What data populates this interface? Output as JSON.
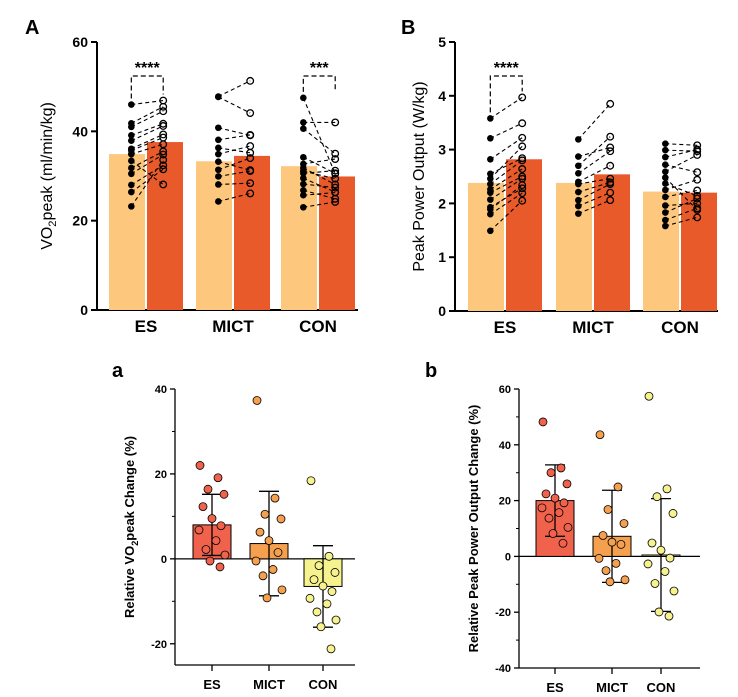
{
  "colors": {
    "pre": "#FDC77E",
    "post": "#E95A2B",
    "es": "#F0624C",
    "mict": "#F4A04E",
    "con": "#F6F38E"
  },
  "chart_data": [
    {
      "panel": "A",
      "type": "bar",
      "categories": [
        "ES",
        "MICT",
        "CON"
      ],
      "ylabel_main": "VO",
      "ylabel_sub": "2",
      "ylabel_rest": "peak (ml/min/kg)",
      "ylim": [
        0,
        60
      ],
      "yticks": [
        "0",
        "20",
        "40",
        "60"
      ],
      "series": [
        {
          "values": [
            34.9,
            33.3,
            32.2
          ]
        },
        {
          "values": [
            37.6,
            34.5,
            29.9
          ]
        }
      ],
      "pairs": [
        [
          [
            23.2,
            33.6
          ],
          [
            26.4,
            31.5
          ],
          [
            28.0,
            32.4
          ],
          [
            30.5,
            34.8
          ],
          [
            31.8,
            35.5
          ],
          [
            33.4,
            28.1
          ],
          [
            34.9,
            37.1
          ],
          [
            35.7,
            38.6
          ],
          [
            36.1,
            39.3
          ],
          [
            37.9,
            41.2
          ],
          [
            39.1,
            41.7
          ],
          [
            41.0,
            44.5
          ],
          [
            41.8,
            45.5
          ],
          [
            46.0,
            46.9
          ]
        ],
        [
          [
            24.3,
            26.1
          ],
          [
            28.1,
            28.4
          ],
          [
            29.9,
            31.1
          ],
          [
            31.4,
            34.0
          ],
          [
            33.2,
            31.3
          ],
          [
            34.9,
            36.7
          ],
          [
            36.3,
            35.2
          ],
          [
            38.1,
            39.2
          ],
          [
            40.8,
            39.1
          ],
          [
            47.7,
            44.1
          ],
          [
            47.8,
            51.3
          ]
        ],
        [
          [
            23.0,
            24.2
          ],
          [
            25.7,
            26.3
          ],
          [
            26.8,
            24.9
          ],
          [
            28.2,
            27.4
          ],
          [
            29.5,
            26.4
          ],
          [
            30.6,
            31.2
          ],
          [
            31.1,
            29.4
          ],
          [
            31.8,
            28.1
          ],
          [
            32.7,
            33.8
          ],
          [
            34.2,
            30.6
          ],
          [
            40.6,
            35.0
          ],
          [
            42.0,
            42.0
          ],
          [
            47.5,
            30.5
          ]
        ]
      ],
      "significance": [
        {
          "category": "ES",
          "label": "****"
        },
        {
          "category": "CON",
          "label": "***"
        }
      ]
    },
    {
      "panel": "B",
      "type": "bar",
      "categories": [
        "ES",
        "MICT",
        "CON"
      ],
      "ylabel": "Peak Power Output (W/kg)",
      "ylim": [
        0,
        5
      ],
      "yticks": [
        "0",
        "1",
        "2",
        "3",
        "4",
        "5"
      ],
      "series": [
        {
          "values": [
            2.38,
            2.38,
            2.22
          ]
        },
        {
          "values": [
            2.82,
            2.54,
            2.2
          ]
        }
      ],
      "pairs": [
        [
          [
            1.49,
            2.05
          ],
          [
            1.8,
            2.19
          ],
          [
            1.89,
            2.34
          ],
          [
            1.93,
            2.28
          ],
          [
            2.07,
            2.46
          ],
          [
            2.2,
            2.5
          ],
          [
            2.26,
            2.64
          ],
          [
            2.36,
            2.8
          ],
          [
            2.46,
            3.06
          ],
          [
            2.55,
            2.84
          ],
          [
            2.82,
            3.22
          ],
          [
            3.21,
            3.49
          ],
          [
            3.58,
            3.97
          ]
        ],
        [
          [
            1.81,
            2.06
          ],
          [
            1.95,
            2.2
          ],
          [
            2.06,
            2.36
          ],
          [
            2.21,
            2.39
          ],
          [
            2.36,
            2.46
          ],
          [
            2.4,
            2.7
          ],
          [
            2.56,
            2.97
          ],
          [
            2.7,
            3.24
          ],
          [
            2.87,
            3.04
          ],
          [
            3.19,
            3.85
          ]
        ],
        [
          [
            1.58,
            1.74
          ],
          [
            1.69,
            1.91
          ],
          [
            1.83,
            2.09
          ],
          [
            1.96,
            2.0
          ],
          [
            2.12,
            2.24
          ],
          [
            2.25,
            2.44
          ],
          [
            2.37,
            2.14
          ],
          [
            2.48,
            1.88
          ],
          [
            2.59,
            2.9
          ],
          [
            2.72,
            2.58
          ],
          [
            2.86,
            3.0
          ],
          [
            2.99,
            2.97
          ],
          [
            3.11,
            3.08
          ]
        ]
      ],
      "significance": [
        {
          "category": "ES",
          "label": "****"
        }
      ]
    },
    {
      "panel": "a",
      "type": "bar",
      "categories": [
        "ES",
        "MICT",
        "CON"
      ],
      "ylabel_main": "Relative VO",
      "ylabel_sub": "2",
      "ylabel_rest": "peak Change  (%)",
      "ylim": [
        -25,
        40
      ],
      "yticks": [
        "-20",
        "0",
        "20",
        "40"
      ],
      "ytick_values": [
        -20,
        0,
        20,
        40
      ],
      "values": [
        8.0,
        3.6,
        -6.5
      ],
      "sd": [
        7.2,
        12.3,
        9.6
      ],
      "points": [
        [
          22.0,
          19.1,
          16.4,
          15.2,
          12.3,
          9.5,
          7.8,
          6.8,
          4.3,
          2.2,
          0.9,
          -0.5,
          -1.9
        ],
        [
          37.3,
          14.3,
          10.5,
          9.4,
          6.3,
          4.3,
          1.5,
          -0.5,
          -2.5,
          -4.0,
          -7.3,
          -9.2
        ],
        [
          18.4,
          0.6,
          -1.6,
          -3.2,
          -4.9,
          -6.4,
          -7.7,
          -9.3,
          -10.6,
          -12.5,
          -14.4,
          -16.0,
          -21.2
        ]
      ]
    },
    {
      "panel": "b",
      "type": "bar",
      "categories": [
        "ES",
        "MICT",
        "CON"
      ],
      "ylabel": "Relative Peak Power Output Change  (%)",
      "ylim": [
        -40,
        60
      ],
      "yticks": [
        "-40",
        "-20",
        "0",
        "20",
        "40",
        "60"
      ],
      "ytick_values": [
        -40,
        -20,
        0,
        20,
        40,
        60
      ],
      "values": [
        20.0,
        7.2,
        0.5
      ],
      "sd": [
        12.8,
        16.5,
        20.2
      ],
      "points": [
        [
          48.2,
          31.7,
          30.0,
          26.0,
          22.4,
          20.9,
          19.2,
          17.4,
          15.7,
          13.7,
          10.4,
          8.2,
          4.7
        ],
        [
          43.6,
          24.9,
          16.8,
          11.8,
          7.5,
          5.1,
          4.3,
          -0.7,
          -2.5,
          -5.1,
          -8.4,
          -9.1
        ],
        [
          57.4,
          24.2,
          21.4,
          15.4,
          4.8,
          2.2,
          -0.6,
          -2.7,
          -5.4,
          -9.7,
          -12.4,
          -19.9,
          -21.4
        ]
      ]
    }
  ]
}
